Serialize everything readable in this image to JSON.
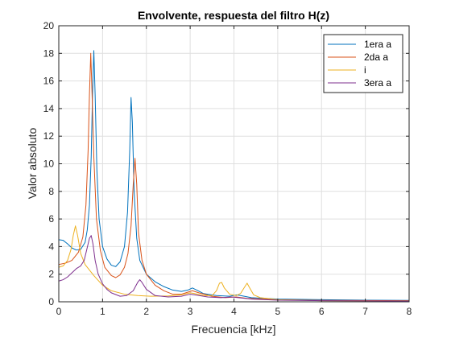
{
  "chart_data": {
    "type": "line",
    "title": "Envolvente, respuesta del filtro H(z)",
    "xlabel": "Frecuencia [kHz]",
    "ylabel": "Valor absoluto",
    "xlim": [
      0,
      8
    ],
    "ylim": [
      0,
      20
    ],
    "xticks": [
      "0",
      "1",
      "2",
      "3",
      "4",
      "5",
      "6",
      "7",
      "8"
    ],
    "yticks": [
      "0",
      "2",
      "4",
      "6",
      "8",
      "10",
      "12",
      "14",
      "16",
      "18",
      "20"
    ],
    "grid": true,
    "legend_position": "top-right",
    "series": [
      {
        "name": "1era a",
        "color": "#0072BD",
        "points": [
          [
            0,
            4.5
          ],
          [
            0.1,
            4.45
          ],
          [
            0.2,
            4.2
          ],
          [
            0.3,
            3.9
          ],
          [
            0.4,
            3.75
          ],
          [
            0.5,
            3.8
          ],
          [
            0.6,
            4.3
          ],
          [
            0.65,
            5.2
          ],
          [
            0.7,
            7.0
          ],
          [
            0.74,
            10.5
          ],
          [
            0.77,
            15.0
          ],
          [
            0.8,
            18.2
          ],
          [
            0.83,
            15.0
          ],
          [
            0.87,
            9.5
          ],
          [
            0.92,
            6.0
          ],
          [
            1.0,
            4.0
          ],
          [
            1.1,
            3.1
          ],
          [
            1.2,
            2.65
          ],
          [
            1.3,
            2.55
          ],
          [
            1.4,
            2.9
          ],
          [
            1.5,
            4.0
          ],
          [
            1.57,
            6.5
          ],
          [
            1.62,
            11.0
          ],
          [
            1.65,
            14.8
          ],
          [
            1.68,
            13.0
          ],
          [
            1.72,
            8.0
          ],
          [
            1.78,
            4.6
          ],
          [
            1.85,
            3.0
          ],
          [
            2.0,
            2.0
          ],
          [
            2.2,
            1.45
          ],
          [
            2.4,
            1.1
          ],
          [
            2.6,
            0.85
          ],
          [
            2.8,
            0.75
          ],
          [
            2.95,
            0.85
          ],
          [
            3.05,
            1.0
          ],
          [
            3.15,
            0.85
          ],
          [
            3.3,
            0.6
          ],
          [
            3.6,
            0.45
          ],
          [
            3.9,
            0.4
          ],
          [
            4.05,
            0.5
          ],
          [
            4.15,
            0.45
          ],
          [
            4.4,
            0.3
          ],
          [
            5.0,
            0.2
          ],
          [
            6.0,
            0.15
          ],
          [
            7.0,
            0.12
          ],
          [
            8.0,
            0.1
          ]
        ]
      },
      {
        "name": "2da a",
        "color": "#D95319",
        "points": [
          [
            0,
            2.7
          ],
          [
            0.15,
            2.8
          ],
          [
            0.3,
            3.0
          ],
          [
            0.45,
            3.6
          ],
          [
            0.55,
            4.7
          ],
          [
            0.62,
            7.0
          ],
          [
            0.67,
            11.0
          ],
          [
            0.7,
            15.0
          ],
          [
            0.73,
            18.0
          ],
          [
            0.76,
            15.0
          ],
          [
            0.8,
            10.5
          ],
          [
            0.86,
            6.0
          ],
          [
            0.95,
            3.7
          ],
          [
            1.05,
            2.5
          ],
          [
            1.2,
            1.9
          ],
          [
            1.3,
            1.75
          ],
          [
            1.4,
            1.95
          ],
          [
            1.5,
            2.5
          ],
          [
            1.58,
            3.5
          ],
          [
            1.65,
            5.5
          ],
          [
            1.7,
            8.5
          ],
          [
            1.74,
            10.4
          ],
          [
            1.78,
            8.5
          ],
          [
            1.82,
            5.0
          ],
          [
            1.9,
            3.0
          ],
          [
            2.0,
            2.0
          ],
          [
            2.2,
            1.2
          ],
          [
            2.4,
            0.8
          ],
          [
            2.6,
            0.55
          ],
          [
            2.8,
            0.55
          ],
          [
            2.95,
            0.7
          ],
          [
            3.05,
            0.8
          ],
          [
            3.2,
            0.65
          ],
          [
            3.5,
            0.4
          ],
          [
            3.8,
            0.3
          ],
          [
            4.05,
            0.35
          ],
          [
            4.3,
            0.25
          ],
          [
            5.0,
            0.15
          ],
          [
            6.0,
            0.1
          ],
          [
            8.0,
            0.08
          ]
        ]
      },
      {
        "name": "i",
        "color": "#EDB120",
        "points": [
          [
            0,
            2.5
          ],
          [
            0.1,
            2.6
          ],
          [
            0.2,
            3.0
          ],
          [
            0.28,
            3.8
          ],
          [
            0.33,
            4.8
          ],
          [
            0.38,
            5.5
          ],
          [
            0.43,
            4.8
          ],
          [
            0.5,
            3.5
          ],
          [
            0.6,
            2.7
          ],
          [
            0.7,
            2.3
          ],
          [
            0.8,
            1.9
          ],
          [
            1.0,
            1.2
          ],
          [
            1.2,
            0.8
          ],
          [
            1.5,
            0.55
          ],
          [
            1.8,
            0.45
          ],
          [
            2.1,
            0.4
          ],
          [
            2.5,
            0.42
          ],
          [
            2.8,
            0.5
          ],
          [
            3.0,
            0.65
          ],
          [
            3.1,
            0.6
          ],
          [
            3.3,
            0.45
          ],
          [
            3.5,
            0.45
          ],
          [
            3.6,
            0.8
          ],
          [
            3.67,
            1.35
          ],
          [
            3.72,
            1.4
          ],
          [
            3.78,
            1.0
          ],
          [
            3.9,
            0.55
          ],
          [
            4.05,
            0.45
          ],
          [
            4.15,
            0.6
          ],
          [
            4.25,
            1.1
          ],
          [
            4.3,
            1.35
          ],
          [
            4.36,
            1.0
          ],
          [
            4.45,
            0.5
          ],
          [
            4.6,
            0.3
          ],
          [
            5.0,
            0.15
          ],
          [
            6.0,
            0.08
          ],
          [
            8.0,
            0.05
          ]
        ]
      },
      {
        "name": "3era a",
        "color": "#7E2F8E",
        "points": [
          [
            0,
            1.5
          ],
          [
            0.1,
            1.6
          ],
          [
            0.2,
            1.8
          ],
          [
            0.3,
            2.1
          ],
          [
            0.4,
            2.4
          ],
          [
            0.5,
            2.6
          ],
          [
            0.58,
            3.0
          ],
          [
            0.64,
            3.8
          ],
          [
            0.7,
            4.6
          ],
          [
            0.74,
            4.8
          ],
          [
            0.78,
            4.2
          ],
          [
            0.83,
            3.0
          ],
          [
            0.9,
            2.0
          ],
          [
            1.0,
            1.3
          ],
          [
            1.1,
            0.9
          ],
          [
            1.2,
            0.65
          ],
          [
            1.4,
            0.4
          ],
          [
            1.55,
            0.45
          ],
          [
            1.7,
            0.8
          ],
          [
            1.8,
            1.4
          ],
          [
            1.85,
            1.6
          ],
          [
            1.9,
            1.4
          ],
          [
            2.0,
            0.9
          ],
          [
            2.2,
            0.45
          ],
          [
            2.5,
            0.35
          ],
          [
            2.8,
            0.4
          ],
          [
            3.0,
            0.55
          ],
          [
            3.1,
            0.5
          ],
          [
            3.4,
            0.35
          ],
          [
            3.7,
            0.3
          ],
          [
            3.95,
            0.35
          ],
          [
            4.1,
            0.3
          ],
          [
            4.4,
            0.2
          ],
          [
            5.0,
            0.12
          ],
          [
            6.0,
            0.08
          ],
          [
            8.0,
            0.05
          ]
        ]
      }
    ]
  }
}
